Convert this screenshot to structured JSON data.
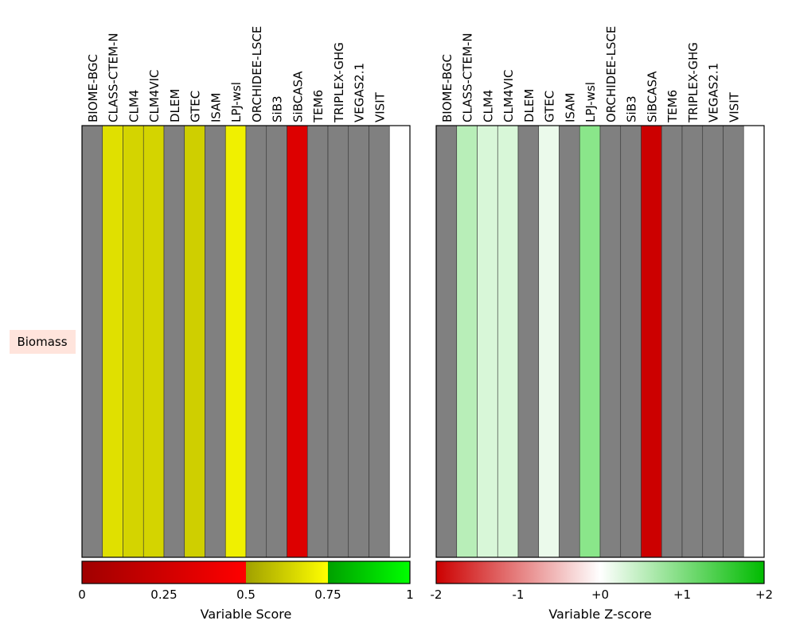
{
  "chart_data": [
    {
      "type": "heatmap",
      "row_label": "Biomass",
      "models": [
        "BIOME-BGC",
        "CLASS-CTEM-N",
        "CLM4",
        "CLM4VIC",
        "DLEM",
        "GTEC",
        "ISAM",
        "LPJ-wsl",
        "ORCHIDEE-LSCE",
        "SiB3",
        "SiBCASA",
        "TEM6",
        "TRIPLEX-GHG",
        "VEGAS2.1",
        "VISIT",
        ""
      ],
      "cells": [
        "#808080",
        "#e0e000",
        "#d4d400",
        "#d4d400",
        "#808080",
        "#cfcf00",
        "#808080",
        "#f0f000",
        "#808080",
        "#808080",
        "#dd0000",
        "#808080",
        "#808080",
        "#808080",
        "#808080",
        "#ffffff"
      ],
      "colorbar": {
        "label": "Variable Score",
        "ticks": [
          "0",
          "0.25",
          "0.5",
          "0.75",
          "1"
        ],
        "segments": [
          {
            "from": 0,
            "to": 0.5,
            "colors": [
              "#a00000",
              "#ff0000"
            ]
          },
          {
            "from": 0.5,
            "to": 0.75,
            "colors": [
              "#a0a000",
              "#ffff00"
            ]
          },
          {
            "from": 0.75,
            "to": 1,
            "colors": [
              "#00a000",
              "#00ff00"
            ]
          }
        ]
      }
    },
    {
      "type": "heatmap",
      "row_label": "",
      "models": [
        "BIOME-BGC",
        "CLASS-CTEM-N",
        "CLM4",
        "CLM4VIC",
        "DLEM",
        "GTEC",
        "ISAM",
        "LPJ-wsl",
        "ORCHIDEE-LSCE",
        "SiB3",
        "SiBCASA",
        "TEM6",
        "TRIPLEX-GHG",
        "VEGAS2.1",
        "VISIT",
        ""
      ],
      "cells": [
        "#808080",
        "#b8eeb8",
        "#d8f7d8",
        "#d8f7d8",
        "#808080",
        "#ebfaeb",
        "#808080",
        "#8ae68a",
        "#808080",
        "#808080",
        "#cc0000",
        "#808080",
        "#808080",
        "#808080",
        "#808080",
        "#ffffff"
      ],
      "colorbar": {
        "label": "Variable Z-score",
        "ticks": [
          "-2",
          "-1",
          "+0",
          "+1",
          "+2"
        ],
        "segments": [
          {
            "from": 0,
            "to": 0.5,
            "colors": [
              "#cc0000",
              "#ffffff"
            ]
          },
          {
            "from": 0.5,
            "to": 1,
            "colors": [
              "#ffffff",
              "#00bb00"
            ]
          }
        ]
      }
    }
  ]
}
